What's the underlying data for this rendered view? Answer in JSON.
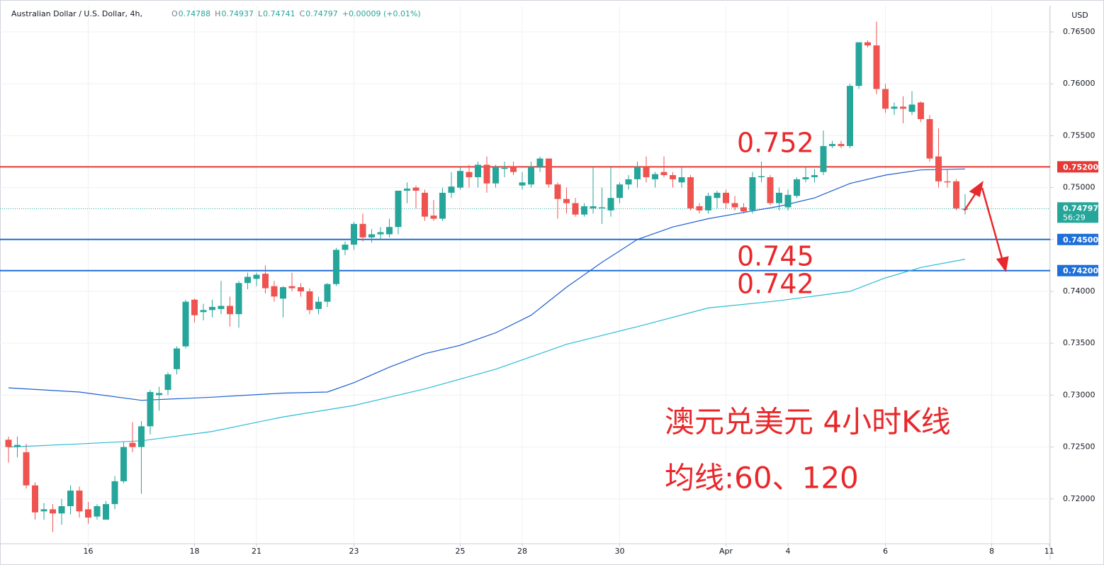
{
  "header": {
    "symbol": "Australian Dollar / U.S. Dollar, 4h,",
    "ohlc": [
      {
        "label": "O",
        "value": "0.74788"
      },
      {
        "label": "H",
        "value": "0.74937"
      },
      {
        "label": "L",
        "value": "0.74741"
      },
      {
        "label": "C",
        "value": "0.74797"
      }
    ],
    "change": "+0.00009 (+0.01%)",
    "currency": "USD"
  },
  "chart_data": {
    "type": "candlestick",
    "up_color": "#26a69a",
    "down_color": "#ef5350",
    "open": [
      0.7257,
      0.725,
      0.7245,
      0.7213,
      0.7188,
      0.719,
      0.7186,
      0.7193,
      0.7208,
      0.719,
      0.7183,
      0.718,
      0.7195,
      0.7217,
      0.7254,
      0.725,
      0.727,
      0.73,
      0.7305,
      0.7325,
      0.7347,
      0.7392,
      0.738,
      0.7382,
      0.7383,
      0.7386,
      0.7378,
      0.7408,
      0.7412,
      0.7417,
      0.7405,
      0.7393,
      0.7405,
      0.7404,
      0.74,
      0.7383,
      0.739,
      0.7407,
      0.744,
      0.7445,
      0.7465,
      0.7452,
      0.7455,
      0.7455,
      0.7462,
      0.7497,
      0.75,
      0.7495,
      0.7473,
      0.747,
      0.7495,
      0.75,
      0.7515,
      0.751,
      0.7522,
      0.7504,
      0.7518,
      0.752,
      0.7502,
      0.7503,
      0.752,
      0.7528,
      0.7503,
      0.7489,
      0.7485,
      0.7474,
      0.748,
      0.748,
      0.7478,
      0.749,
      0.7503,
      0.7508,
      0.752,
      0.7508,
      0.7515,
      0.7512,
      0.7505,
      0.751,
      0.7482,
      0.7478,
      0.749,
      0.7495,
      0.7485,
      0.7481,
      0.7478,
      0.751,
      0.751,
      0.7485,
      0.7481,
      0.7492,
      0.7508,
      0.751,
      0.7515,
      0.754,
      0.7542,
      0.754,
      0.7598,
      0.764,
      0.7637,
      0.7595,
      0.7576,
      0.7578,
      0.7573,
      0.7582,
      0.7566,
      0.753,
      0.7506,
      0.7506,
      0.74788
    ],
    "high": [
      0.726,
      0.726,
      0.7253,
      0.7216,
      0.7196,
      0.7195,
      0.72,
      0.7213,
      0.7212,
      0.7197,
      0.7195,
      0.7198,
      0.7222,
      0.7255,
      0.7274,
      0.7275,
      0.7305,
      0.7308,
      0.7322,
      0.7347,
      0.7392,
      0.7393,
      0.7388,
      0.7392,
      0.741,
      0.7395,
      0.741,
      0.7418,
      0.7418,
      0.7425,
      0.741,
      0.7405,
      0.7418,
      0.7408,
      0.7403,
      0.7395,
      0.7408,
      0.7442,
      0.7448,
      0.7467,
      0.7475,
      0.746,
      0.7462,
      0.747,
      0.7497,
      0.7505,
      0.7502,
      0.7498,
      0.7488,
      0.75,
      0.7515,
      0.752,
      0.7522,
      0.7525,
      0.753,
      0.7522,
      0.7525,
      0.7525,
      0.7515,
      0.7525,
      0.753,
      0.7528,
      0.7505,
      0.75,
      0.749,
      0.7485,
      0.752,
      0.75,
      0.752,
      0.7505,
      0.7512,
      0.7525,
      0.753,
      0.7515,
      0.753,
      0.7515,
      0.752,
      0.7512,
      0.7485,
      0.7495,
      0.7497,
      0.7498,
      0.7492,
      0.7485,
      0.7515,
      0.7525,
      0.7512,
      0.75,
      0.7498,
      0.751,
      0.752,
      0.7518,
      0.7555,
      0.7545,
      0.7545,
      0.76,
      0.764,
      0.7642,
      0.766,
      0.76,
      0.7582,
      0.7588,
      0.7593,
      0.7583,
      0.757,
      0.7557,
      0.7518,
      0.7508,
      0.74937
    ],
    "low": [
      0.7235,
      0.724,
      0.721,
      0.718,
      0.718,
      0.7168,
      0.7175,
      0.7185,
      0.7182,
      0.7176,
      0.718,
      0.718,
      0.719,
      0.7215,
      0.7245,
      0.7205,
      0.7262,
      0.7285,
      0.73,
      0.732,
      0.7345,
      0.737,
      0.7372,
      0.7375,
      0.7378,
      0.7366,
      0.7365,
      0.7402,
      0.7405,
      0.7398,
      0.739,
      0.7375,
      0.74,
      0.7395,
      0.7378,
      0.7378,
      0.7385,
      0.7405,
      0.7435,
      0.744,
      0.7448,
      0.7447,
      0.745,
      0.7452,
      0.7455,
      0.7485,
      0.748,
      0.7468,
      0.7468,
      0.7468,
      0.749,
      0.7498,
      0.75,
      0.75,
      0.7495,
      0.75,
      0.751,
      0.7512,
      0.7498,
      0.75,
      0.7515,
      0.75,
      0.747,
      0.7475,
      0.7472,
      0.7472,
      0.7475,
      0.7465,
      0.7472,
      0.7485,
      0.7498,
      0.75,
      0.7505,
      0.75,
      0.751,
      0.75,
      0.75,
      0.7478,
      0.7475,
      0.7475,
      0.748,
      0.748,
      0.7478,
      0.7475,
      0.7475,
      0.7505,
      0.7483,
      0.7478,
      0.7478,
      0.749,
      0.7505,
      0.7505,
      0.7512,
      0.7538,
      0.7538,
      0.7538,
      0.7595,
      0.7635,
      0.759,
      0.7572,
      0.757,
      0.7562,
      0.757,
      0.7563,
      0.7525,
      0.75,
      0.75,
      0.7478,
      0.74741
    ],
    "close": [
      0.725,
      0.7252,
      0.7213,
      0.7187,
      0.719,
      0.7186,
      0.7193,
      0.7208,
      0.7188,
      0.7182,
      0.7193,
      0.7195,
      0.7217,
      0.725,
      0.725,
      0.727,
      0.7303,
      0.7302,
      0.732,
      0.7345,
      0.739,
      0.7377,
      0.7382,
      0.7385,
      0.7386,
      0.7378,
      0.7408,
      0.7414,
      0.7416,
      0.7403,
      0.7395,
      0.7404,
      0.7403,
      0.74,
      0.7382,
      0.739,
      0.7407,
      0.744,
      0.7445,
      0.7465,
      0.7452,
      0.7455,
      0.7457,
      0.7462,
      0.7497,
      0.7499,
      0.7497,
      0.7472,
      0.747,
      0.7495,
      0.7501,
      0.7516,
      0.751,
      0.7522,
      0.7504,
      0.752,
      0.7519,
      0.7515,
      0.7505,
      0.752,
      0.7528,
      0.7503,
      0.7489,
      0.7485,
      0.7474,
      0.7482,
      0.7482,
      0.7481,
      0.749,
      0.7503,
      0.7508,
      0.752,
      0.751,
      0.7513,
      0.7512,
      0.7508,
      0.751,
      0.748,
      0.7478,
      0.7492,
      0.7495,
      0.7485,
      0.7481,
      0.7477,
      0.751,
      0.7511,
      0.7485,
      0.7495,
      0.7493,
      0.7508,
      0.751,
      0.7512,
      0.754,
      0.7542,
      0.754,
      0.7598,
      0.764,
      0.7637,
      0.7595,
      0.7576,
      0.7578,
      0.7576,
      0.758,
      0.7566,
      0.7528,
      0.7506,
      0.7505,
      0.748,
      0.74797
    ],
    "lines": [
      {
        "color": "#1e5fd0",
        "x": [
          0,
          8,
          15,
          23,
          31,
          36,
          39,
          43,
          47,
          51,
          55,
          59,
          63,
          67,
          71,
          75,
          79,
          83,
          87,
          91,
          95,
          99,
          103,
          108
        ],
        "values": [
          0.7307,
          0.7303,
          0.7295,
          0.7298,
          0.7302,
          0.7303,
          0.7312,
          0.7327,
          0.734,
          0.7348,
          0.736,
          0.7377,
          0.7404,
          0.7428,
          0.745,
          0.7462,
          0.747,
          0.7476,
          0.7482,
          0.749,
          0.7504,
          0.7512,
          0.7517,
          0.7518
        ]
      },
      {
        "color": "#2bbcd4",
        "x": [
          0,
          8,
          15,
          23,
          31,
          39,
          47,
          55,
          63,
          71,
          79,
          87,
          95,
          99,
          103,
          108
        ],
        "values": [
          0.725,
          0.7253,
          0.7256,
          0.7265,
          0.7279,
          0.729,
          0.7306,
          0.7325,
          0.7349,
          0.7366,
          0.7384,
          0.7391,
          0.74,
          0.7413,
          0.7423,
          0.7431
        ]
      }
    ],
    "hlines": [
      {
        "value": 0.752,
        "label": "0.75200",
        "color": "#e53935"
      },
      {
        "value": 0.745,
        "label": "0.74500",
        "color": "#1e6fd9"
      },
      {
        "value": 0.742,
        "label": "0.74200",
        "color": "#1e6fd9"
      }
    ],
    "last_price": {
      "value": 0.74797,
      "label": "0.74797",
      "countdown": "56:29",
      "color": "#26a69a"
    },
    "annotations": [
      "0.752",
      "0.745",
      "0.742"
    ],
    "notes": [
      "澳元兑美元 4小时K线",
      "均线:60、120"
    ],
    "xlim": [
      -0.96,
      117.6
    ],
    "ylim": [
      0.71568,
      0.76753
    ],
    "yticks": [
      {
        "value": 0.765,
        "label": "0.76500"
      },
      {
        "value": 0.76,
        "label": "0.76000"
      },
      {
        "value": 0.755,
        "label": "0.75500"
      },
      {
        "value": 0.75,
        "label": "0.75000"
      },
      {
        "value": 0.745,
        "label": "0.74500"
      },
      {
        "value": 0.74,
        "label": "0.74000"
      },
      {
        "value": 0.735,
        "label": "0.73500"
      },
      {
        "value": 0.73,
        "label": "0.73000"
      },
      {
        "value": 0.725,
        "label": "0.72500"
      },
      {
        "value": 0.72,
        "label": "0.72000"
      }
    ],
    "xticks": [
      {
        "value": 9,
        "label": "16"
      },
      {
        "value": 21,
        "label": "18"
      },
      {
        "value": 28,
        "label": "21"
      },
      {
        "value": 39,
        "label": "23"
      },
      {
        "value": 51,
        "label": "25"
      },
      {
        "value": 58,
        "label": "28"
      },
      {
        "value": 69,
        "label": "30"
      },
      {
        "value": 81,
        "label": "Apr"
      },
      {
        "value": 88,
        "label": "4"
      },
      {
        "value": 99,
        "label": "6"
      },
      {
        "value": 111,
        "label": "8"
      },
      {
        "value": 117.5,
        "label": "11"
      }
    ],
    "grid": true
  }
}
